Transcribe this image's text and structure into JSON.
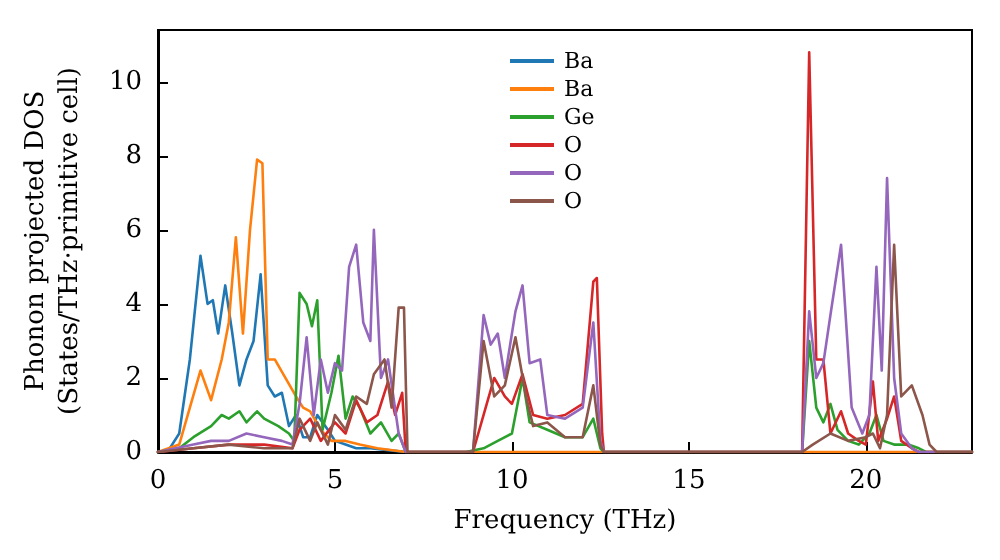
{
  "chart_data": {
    "type": "line",
    "xlabel": "Frequency (THz)",
    "ylabel": "Phonon projected DOS\n(States/THz·primitive cell)",
    "xlim": [
      0,
      23
    ],
    "xticks": [
      0,
      5,
      10,
      15,
      20
    ],
    "ylim": [
      0,
      11.4
    ],
    "yticks": [
      0,
      2,
      4,
      6,
      8,
      10
    ],
    "grid": false,
    "legend": "top",
    "marker": "none",
    "line_style": "solid",
    "series": [
      {
        "name": "Ba",
        "color": "#1f77b4",
        "x": [
          0,
          0.3,
          0.6,
          0.9,
          1.2,
          1.4,
          1.55,
          1.7,
          1.9,
          2.1,
          2.3,
          2.5,
          2.7,
          2.9,
          3.1,
          3.3,
          3.5,
          3.7,
          3.9,
          4.1,
          4.3,
          4.5,
          4.8,
          5.0,
          5.3,
          5.6,
          6.0,
          6.5,
          7
        ],
        "values": [
          0,
          0.05,
          0.5,
          2.5,
          5.3,
          4.0,
          4.1,
          3.2,
          4.5,
          3.2,
          1.8,
          2.5,
          3.0,
          4.8,
          1.8,
          1.5,
          1.6,
          0.7,
          1.0,
          0.4,
          0.4,
          1.0,
          0.6,
          0.3,
          0.2,
          0.1,
          0.1,
          0.05,
          0
        ]
      },
      {
        "name": "Ba",
        "color": "#ff7f0e",
        "x": [
          0,
          0.6,
          0.9,
          1.2,
          1.5,
          1.8,
          2.0,
          2.2,
          2.4,
          2.6,
          2.8,
          2.95,
          3.1,
          3.3,
          3.6,
          3.9,
          4.1,
          4.3,
          4.6,
          4.9,
          5.3,
          5.7,
          6.2,
          7,
          12,
          18,
          23
        ],
        "values": [
          0,
          0.2,
          1.2,
          2.2,
          1.4,
          2.5,
          3.5,
          5.8,
          3.2,
          6.0,
          7.9,
          7.8,
          2.5,
          2.5,
          2.0,
          1.5,
          1.2,
          1.1,
          0.6,
          0.3,
          0.3,
          0.2,
          0.1,
          0,
          0,
          0,
          0
        ]
      },
      {
        "name": "Ge",
        "color": "#2ca02c",
        "x": [
          0,
          0.6,
          1,
          1.5,
          1.8,
          2.0,
          2.3,
          2.5,
          2.8,
          3.0,
          3.4,
          3.7,
          3.85,
          4.0,
          4.2,
          4.35,
          4.5,
          4.65,
          4.9,
          5.1,
          5.3,
          5.5,
          5.7,
          6.0,
          6.3,
          6.6,
          6.8,
          7,
          8.7,
          9.2,
          9.6,
          10.0,
          10.3,
          10.5,
          11,
          11.5,
          12,
          12.3,
          12.5,
          12.6,
          18.2,
          18.4,
          18.6,
          18.8,
          19.0,
          19.2,
          19.5,
          19.8,
          20.1,
          20.3,
          20.5,
          20.8,
          21.2,
          21.5,
          21.7,
          23
        ],
        "values": [
          0,
          0.1,
          0.4,
          0.7,
          1.0,
          0.9,
          1.1,
          0.8,
          1.1,
          0.9,
          0.7,
          0.5,
          0.3,
          4.3,
          4.0,
          3.4,
          4.1,
          0.6,
          1.6,
          2.6,
          0.9,
          1.5,
          1.2,
          0.5,
          0.8,
          0.3,
          0.5,
          0,
          0,
          0.1,
          0.3,
          0.5,
          2.0,
          0.8,
          0.6,
          0.4,
          0.4,
          0.9,
          0.1,
          0,
          0,
          3.0,
          1.2,
          0.8,
          1.3,
          0.6,
          0.3,
          0.2,
          0.5,
          1.0,
          0.3,
          0.2,
          0.2,
          0.1,
          0,
          0
        ]
      },
      {
        "name": "O",
        "color": "#d62728",
        "x": [
          0,
          1,
          2,
          3,
          3.8,
          4.0,
          4.3,
          4.6,
          5.0,
          5.3,
          5.6,
          5.9,
          6.2,
          6.5,
          6.7,
          6.9,
          7,
          8.9,
          9.2,
          9.5,
          9.8,
          10.0,
          10.3,
          10.6,
          11,
          11.5,
          12.0,
          12.3,
          12.4,
          12.55,
          12.6,
          18.2,
          18.4,
          18.6,
          18.8,
          19.0,
          19.3,
          19.5,
          19.8,
          20.0,
          20.2,
          20.35,
          20.6,
          20.8,
          21.0,
          21.3,
          21.5,
          23
        ],
        "values": [
          0,
          0.1,
          0.2,
          0.2,
          0.1,
          0.6,
          0.9,
          0.3,
          0.8,
          0.5,
          1.4,
          0.8,
          1.0,
          1.9,
          1.0,
          1.6,
          0,
          0,
          1.0,
          2.0,
          1.5,
          1.3,
          2.1,
          1.0,
          0.9,
          1.0,
          1.3,
          4.6,
          4.7,
          0.5,
          0,
          0,
          10.8,
          2.5,
          2.5,
          0.5,
          1.1,
          0.5,
          0.3,
          0.2,
          1.9,
          0.3,
          0.9,
          1.5,
          0.3,
          0.1,
          0,
          0
        ]
      },
      {
        "name": "O",
        "color": "#9467bd",
        "x": [
          0,
          1,
          1.5,
          2,
          2.5,
          3,
          3.5,
          3.8,
          4.0,
          4.2,
          4.4,
          4.6,
          4.8,
          5.0,
          5.2,
          5.4,
          5.6,
          5.8,
          6.0,
          6.1,
          6.3,
          6.5,
          6.8,
          7,
          8.9,
          9.2,
          9.4,
          9.6,
          9.8,
          10.1,
          10.3,
          10.5,
          10.8,
          11,
          11.5,
          12,
          12.3,
          12.5,
          12.6,
          18.2,
          18.4,
          18.6,
          18.8,
          19.0,
          19.3,
          19.6,
          19.9,
          20.1,
          20.3,
          20.45,
          20.6,
          20.8,
          21.0,
          21.3,
          21.5,
          23
        ],
        "values": [
          0,
          0.2,
          0.3,
          0.3,
          0.5,
          0.4,
          0.3,
          0.2,
          1.3,
          3.1,
          1.0,
          2.5,
          1.6,
          2.4,
          2.2,
          5.0,
          5.6,
          3.5,
          3.0,
          6.0,
          2.0,
          2.5,
          0.5,
          0,
          0,
          3.7,
          2.9,
          3.2,
          2.0,
          3.8,
          4.5,
          2.4,
          2.5,
          1.0,
          0.9,
          1.2,
          3.5,
          0.3,
          0,
          0,
          3.8,
          2.0,
          2.4,
          3.7,
          5.6,
          1.2,
          0.5,
          1.0,
          5.0,
          2.2,
          7.4,
          2.0,
          0.5,
          0.1,
          0,
          0
        ]
      },
      {
        "name": "O",
        "color": "#8c564b",
        "x": [
          0,
          1,
          2,
          3,
          3.8,
          4.0,
          4.3,
          4.5,
          4.8,
          5.0,
          5.3,
          5.6,
          5.9,
          6.1,
          6.4,
          6.6,
          6.8,
          6.95,
          7.05,
          8.9,
          9.2,
          9.5,
          9.8,
          10.1,
          10.4,
          10.6,
          11,
          11.5,
          12,
          12.3,
          12.5,
          12.6,
          18.2,
          18.5,
          19.0,
          19.5,
          20.0,
          20.2,
          20.4,
          20.6,
          20.8,
          21.0,
          21.3,
          21.6,
          21.8,
          22.0,
          23
        ],
        "values": [
          0,
          0.1,
          0.2,
          0.1,
          0.1,
          0.9,
          0.3,
          0.8,
          0.2,
          1.0,
          0.6,
          1.5,
          1.3,
          2.1,
          2.5,
          1.2,
          3.9,
          3.9,
          0,
          0,
          3.0,
          1.5,
          1.8,
          3.1,
          1.5,
          0.7,
          0.8,
          0.4,
          0.4,
          1.8,
          0.2,
          0,
          0,
          0.2,
          0.5,
          0.3,
          0.4,
          0.5,
          0.1,
          1.0,
          5.6,
          1.5,
          1.8,
          1.0,
          0.2,
          0,
          0
        ]
      }
    ]
  }
}
